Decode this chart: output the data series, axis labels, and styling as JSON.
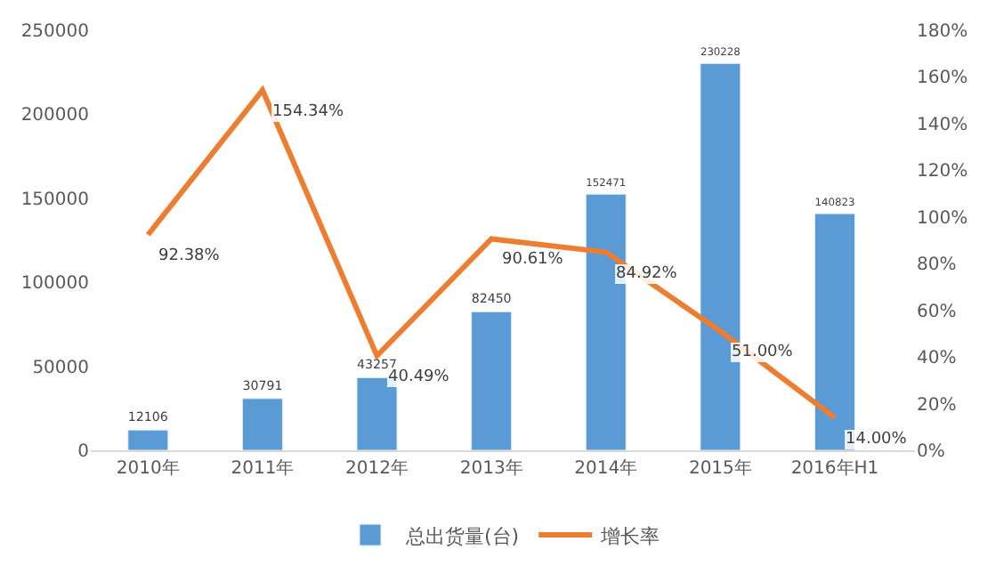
{
  "chart_data": {
    "type": "bar",
    "categories": [
      "2010年",
      "2011年",
      "2012年",
      "2013年",
      "2014年",
      "2015年",
      "2016年H1"
    ],
    "series": [
      {
        "name": "总出货量(台)",
        "color": "#5b9bd5",
        "values": [
          12106,
          30791,
          43257,
          82450,
          152471,
          230228,
          140823
        ],
        "value_labels": [
          "12106",
          "30791",
          "43257",
          "82450",
          "152471",
          "230228",
          "140823"
        ]
      },
      {
        "name": "增长率",
        "type": "line",
        "axis": "y2",
        "color": "#ed7d31",
        "values": [
          92.38,
          154.34,
          40.49,
          90.61,
          84.92,
          51.0,
          14.0
        ],
        "value_labels": [
          "92.38%",
          "154.34%",
          "40.49%",
          "90.61%",
          "84.92%",
          "51.00%",
          "14.00%"
        ]
      }
    ],
    "ylim": [
      0,
      250000
    ],
    "yticks": [
      0,
      50000,
      100000,
      150000,
      200000,
      250000
    ],
    "y2lim": [
      0,
      180
    ],
    "y2ticks": [
      {
        "value": 0,
        "label": "0%"
      },
      {
        "value": 20,
        "label": "20%"
      },
      {
        "value": 40,
        "label": "40%"
      },
      {
        "value": 60,
        "label": "60%"
      },
      {
        "value": 80,
        "label": "80%"
      },
      {
        "value": 100,
        "label": "100%"
      },
      {
        "value": 120,
        "label": "120%"
      },
      {
        "value": 140,
        "label": "140%"
      },
      {
        "value": 160,
        "label": "160%"
      },
      {
        "value": 180,
        "label": "180%"
      }
    ],
    "legend": "bottom",
    "grid": false,
    "marker": "none",
    "line_style": "solid"
  }
}
